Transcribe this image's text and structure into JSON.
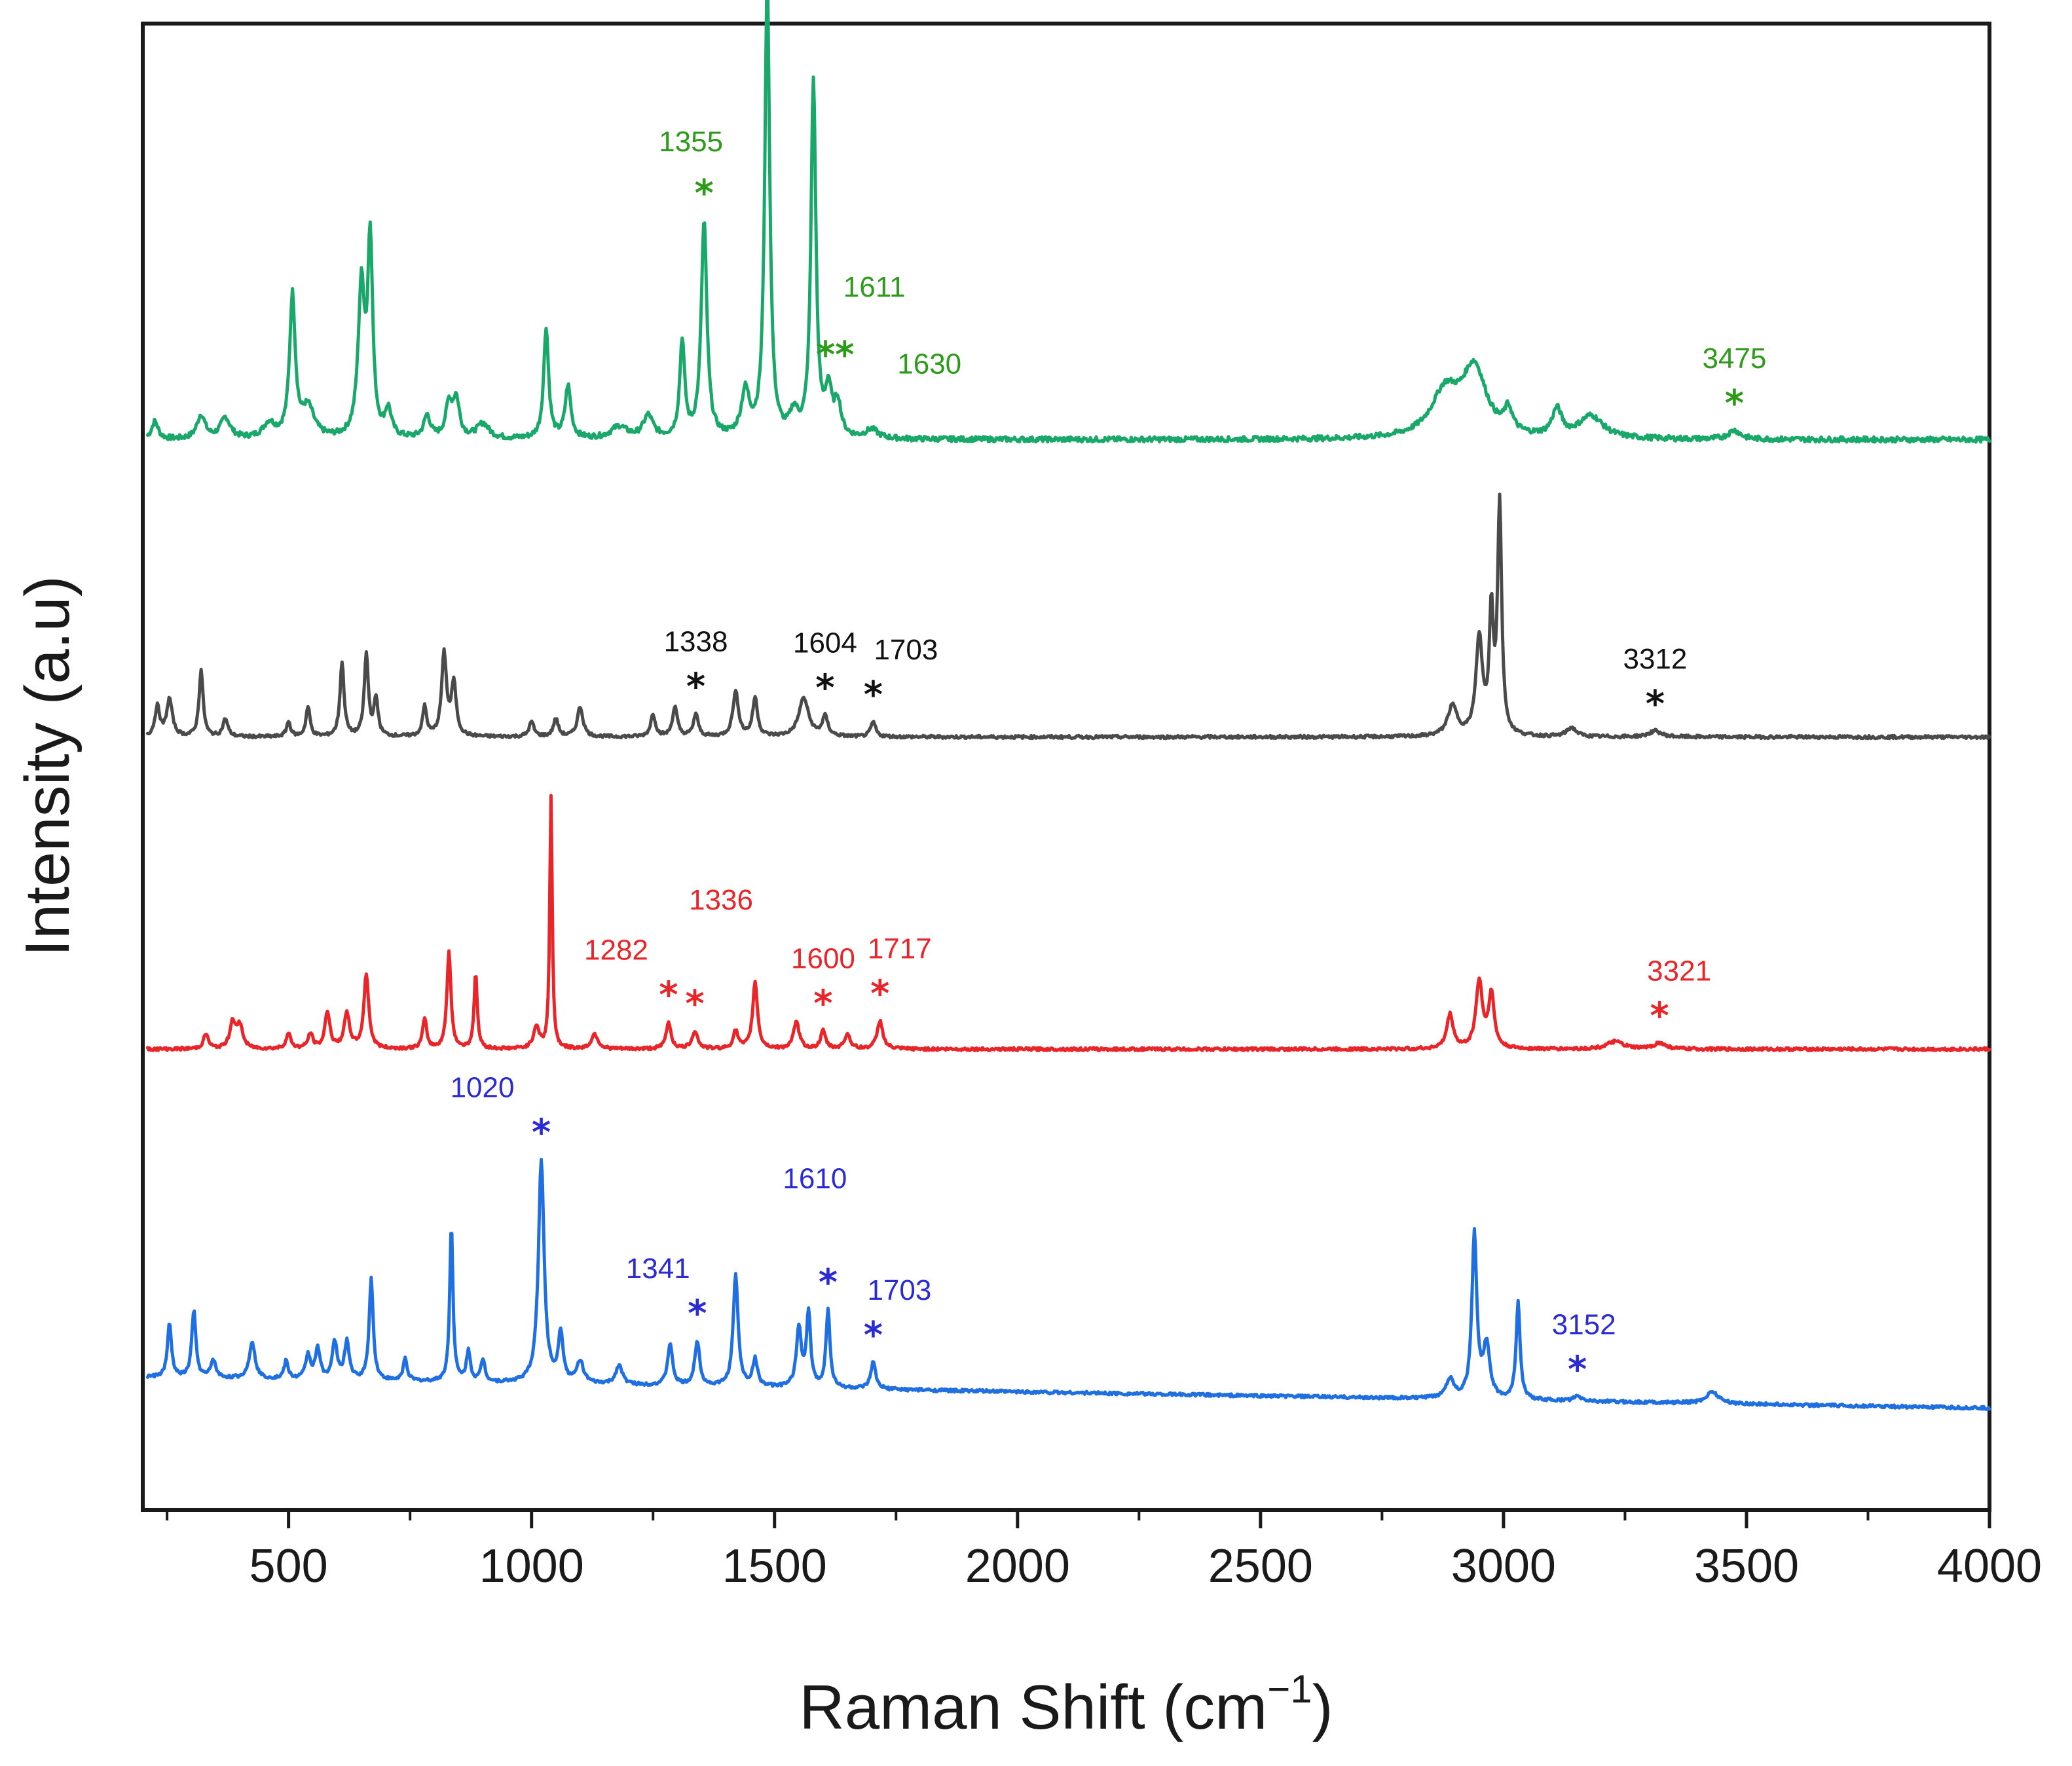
{
  "chart_data": {
    "type": "line",
    "xlabel": "Raman Shift (cm",
    "xlabel_sup": "−1",
    "xlabel_end": ")",
    "ylabel": "Intensity (a.u)",
    "xlim": [
      200,
      4000
    ],
    "ylim": [
      0,
      100
    ],
    "x_ticks": [
      500,
      1000,
      1500,
      2000,
      2500,
      3000,
      3500,
      4000
    ],
    "y_ticks_shown": false,
    "legend": "none",
    "series": [
      {
        "name": "green",
        "color": "#1aa86a",
        "label_color": "#2e9a1a",
        "baseline": 72,
        "offset_tilt": 0,
        "noise": 0.35,
        "peaks": [
          [
            225,
            1.2,
            8
          ],
          [
            320,
            1.6,
            10
          ],
          [
            370,
            1.4,
            12
          ],
          [
            460,
            1.0,
            15
          ],
          [
            508,
            9.5,
            7
          ],
          [
            540,
            2.0,
            15
          ],
          [
            650,
            10.0,
            8
          ],
          [
            668,
            13.0,
            6
          ],
          [
            705,
            1.8,
            8
          ],
          [
            785,
            1.5,
            8
          ],
          [
            830,
            2.2,
            8
          ],
          [
            845,
            2.5,
            8
          ],
          [
            900,
            1.0,
            15
          ],
          [
            1030,
            7.5,
            6
          ],
          [
            1075,
            3.5,
            7
          ],
          [
            1180,
            0.8,
            20
          ],
          [
            1240,
            1.5,
            12
          ],
          [
            1310,
            6.5,
            6
          ],
          [
            1355,
            14.5,
            7
          ],
          [
            1440,
            3.0,
            10
          ],
          [
            1485,
            31.0,
            6
          ],
          [
            1540,
            1.5,
            10
          ],
          [
            1580,
            24.0,
            6
          ],
          [
            1611,
            3.0,
            8
          ],
          [
            1630,
            2.2,
            8
          ],
          [
            1700,
            0.6,
            15
          ],
          [
            2880,
            3.0,
            35
          ],
          [
            2940,
            4.5,
            30
          ],
          [
            3010,
            1.5,
            10
          ],
          [
            3110,
            1.8,
            12
          ],
          [
            3180,
            1.5,
            30
          ],
          [
            3475,
            0.6,
            15
          ]
        ],
        "annotations": [
          {
            "label": "1355",
            "peak": 1355,
            "dx": -80,
            "dy": 0,
            "star_at": "peak"
          },
          {
            "label": "1611",
            "peak": 1611,
            "dx": 0,
            "dy": 0,
            "star_at": "near",
            "double_star": true
          },
          {
            "label": "1630",
            "peak": 1630,
            "dx": 0,
            "dy": 0,
            "star_at": "none"
          },
          {
            "label": "3475",
            "peak": 3475,
            "dx": 0,
            "dy": 0,
            "star_at": "peak"
          }
        ]
      },
      {
        "name": "black",
        "color": "#4a4a4a",
        "label_color": "#111111",
        "baseline": 52,
        "offset_tilt": 0,
        "noise": 0.2,
        "peaks": [
          [
            230,
            2.0,
            6
          ],
          [
            255,
            2.5,
            7
          ],
          [
            320,
            4.5,
            5
          ],
          [
            370,
            1.2,
            6
          ],
          [
            500,
            1.0,
            5
          ],
          [
            540,
            2.0,
            5
          ],
          [
            610,
            5.0,
            5
          ],
          [
            660,
            5.5,
            5
          ],
          [
            680,
            2.5,
            5
          ],
          [
            780,
            2.0,
            5
          ],
          [
            820,
            5.5,
            6
          ],
          [
            840,
            3.5,
            6
          ],
          [
            1000,
            1.0,
            6
          ],
          [
            1050,
            1.2,
            6
          ],
          [
            1100,
            2.0,
            7
          ],
          [
            1250,
            1.5,
            6
          ],
          [
            1295,
            2.0,
            6
          ],
          [
            1338,
            1.5,
            6
          ],
          [
            1420,
            3.0,
            7
          ],
          [
            1460,
            2.6,
            6
          ],
          [
            1560,
            2.6,
            12
          ],
          [
            1604,
            1.3,
            7
          ],
          [
            1703,
            1.0,
            6
          ],
          [
            2895,
            2.0,
            12
          ],
          [
            2950,
            6.5,
            8
          ],
          [
            2975,
            8.0,
            5
          ],
          [
            2992,
            15.5,
            5
          ],
          [
            3140,
            0.6,
            12
          ],
          [
            3312,
            0.4,
            15
          ]
        ],
        "annotations": [
          {
            "label": "1338",
            "peak": 1338,
            "dx": 0,
            "dy": 0,
            "star_at": "peak"
          },
          {
            "label": "1604",
            "peak": 1604,
            "dx": 0,
            "dy": 0,
            "star_at": "peak"
          },
          {
            "label": "1703",
            "peak": 1703,
            "dx": 50,
            "dy": 0,
            "star_at": "peak"
          },
          {
            "label": "3312",
            "peak": 3312,
            "dx": 0,
            "dy": 0,
            "star_at": "peak"
          }
        ]
      },
      {
        "name": "red",
        "color": "#e8262a",
        "label_color": "#e8262a",
        "baseline": 31,
        "offset_tilt": 0.0,
        "noise": 0.2,
        "peaks": [
          [
            330,
            1.0,
            6
          ],
          [
            385,
            1.8,
            7
          ],
          [
            400,
            1.5,
            7
          ],
          [
            500,
            1.0,
            6
          ],
          [
            545,
            1.0,
            6
          ],
          [
            580,
            2.5,
            6
          ],
          [
            620,
            2.3,
            7
          ],
          [
            660,
            5.0,
            6
          ],
          [
            780,
            2.0,
            5
          ],
          [
            830,
            6.5,
            5
          ],
          [
            885,
            5.0,
            4
          ],
          [
            1010,
            1.5,
            7
          ],
          [
            1040,
            17.0,
            3
          ],
          [
            1130,
            1.0,
            8
          ],
          [
            1282,
            1.8,
            6
          ],
          [
            1336,
            1.2,
            7
          ],
          [
            1420,
            1.2,
            6
          ],
          [
            1460,
            4.5,
            6
          ],
          [
            1545,
            1.8,
            7
          ],
          [
            1600,
            1.2,
            6
          ],
          [
            1650,
            1.0,
            7
          ],
          [
            1717,
            1.9,
            7
          ],
          [
            2890,
            2.3,
            8
          ],
          [
            2950,
            4.5,
            8
          ],
          [
            2975,
            3.6,
            7
          ],
          [
            3230,
            0.5,
            20
          ],
          [
            3321,
            0.4,
            15
          ]
        ],
        "annotations": [
          {
            "label": "1282",
            "peak": 1282,
            "dx": -80,
            "dy": 0,
            "star_at": "peak"
          },
          {
            "label": "1336",
            "peak": 1336,
            "dx": 40,
            "dy": 0,
            "star_at": "peak",
            "high_label": true
          },
          {
            "label": "1600",
            "peak": 1600,
            "dx": 0,
            "dy": 0,
            "star_at": "peak"
          },
          {
            "label": "1717",
            "peak": 1717,
            "dx": 30,
            "dy": 0,
            "star_at": "peak"
          },
          {
            "label": "3321",
            "peak": 3321,
            "dx": 30,
            "dy": 0,
            "star_at": "peak"
          }
        ]
      },
      {
        "name": "blue",
        "color": "#1f6fe0",
        "label_color": "#2b2bd4",
        "baseline": 8.5,
        "offset_tilt": 0,
        "noise": 0.2,
        "peaks": [
          [
            255,
            3.6,
            5
          ],
          [
            305,
            4.5,
            5
          ],
          [
            345,
            1.2,
            6
          ],
          [
            425,
            2.5,
            7
          ],
          [
            495,
            1.2,
            5
          ],
          [
            540,
            1.6,
            6
          ],
          [
            560,
            2.0,
            6
          ],
          [
            595,
            2.5,
            6
          ],
          [
            620,
            2.5,
            6
          ],
          [
            670,
            6.8,
            5
          ],
          [
            740,
            1.5,
            5
          ],
          [
            835,
            10.5,
            4
          ],
          [
            870,
            2.0,
            5
          ],
          [
            900,
            1.5,
            5
          ],
          [
            1020,
            15.0,
            7
          ],
          [
            1060,
            3.3,
            6
          ],
          [
            1100,
            1.5,
            8
          ],
          [
            1180,
            1.3,
            8
          ],
          [
            1285,
            2.8,
            6
          ],
          [
            1341,
            3.0,
            6
          ],
          [
            1420,
            7.5,
            6
          ],
          [
            1460,
            1.8,
            6
          ],
          [
            1550,
            4.0,
            6
          ],
          [
            1570,
            5.0,
            5
          ],
          [
            1610,
            5.2,
            5
          ],
          [
            1703,
            1.8,
            6
          ],
          [
            2890,
            1.3,
            10
          ],
          [
            2940,
            11.0,
            6
          ],
          [
            2965,
            3.5,
            8
          ],
          [
            3030,
            6.5,
            5
          ],
          [
            3152,
            0.3,
            10
          ],
          [
            3430,
            0.8,
            15
          ]
        ],
        "tilt": -0.00055,
        "annotations": [
          {
            "label": "1020",
            "peak": 1020,
            "dx": -90,
            "dy": 0,
            "star_at": "peak"
          },
          {
            "label": "1341",
            "peak": 1341,
            "dx": -60,
            "dy": 0,
            "star_at": "peak"
          },
          {
            "label": "1610",
            "peak": 1610,
            "dx": -20,
            "dy": 0,
            "star_at": "peak",
            "high_label": true
          },
          {
            "label": "1703",
            "peak": 1703,
            "dx": 40,
            "dy": 0,
            "star_at": "peak"
          },
          {
            "label": "3152",
            "peak": 3152,
            "dx": 10,
            "dy": 0,
            "star_at": "peak"
          }
        ]
      }
    ]
  }
}
